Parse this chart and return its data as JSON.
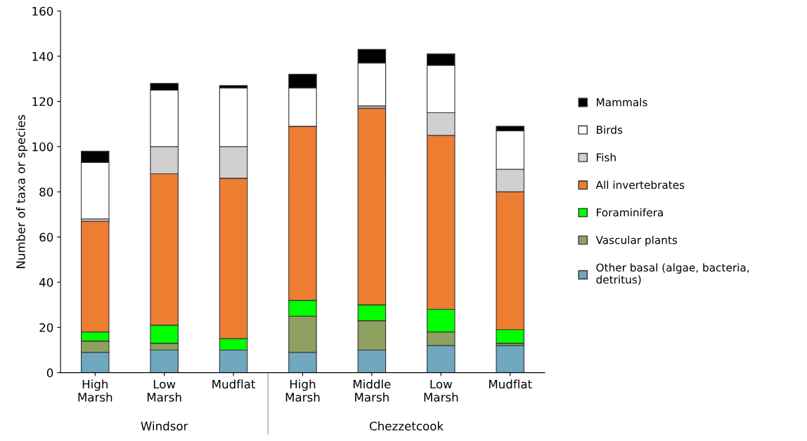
{
  "chart_data": {
    "type": "bar",
    "stacked": true,
    "ylabel": "Number of taxa or species",
    "categories": [
      "High\nMarsh",
      "Low\nMarsh",
      "Mudflat",
      "High\nMarsh",
      "Middle\nMarsh",
      "Low\nMarsh",
      "Mudflat"
    ],
    "series": [
      {
        "name": "Other basal (algae, bacteria, detritus)",
        "color": "#6fa8bf",
        "values": [
          9,
          10,
          10,
          9,
          10,
          12,
          12
        ]
      },
      {
        "name": "Vascular plants",
        "color": "#8ea060",
        "values": [
          5,
          3,
          0,
          16,
          13,
          6,
          1
        ]
      },
      {
        "name": "Foraminifera",
        "color": "#00ff00",
        "values": [
          4,
          8,
          5,
          7,
          7,
          10,
          6
        ]
      },
      {
        "name": "All invertebrates",
        "color": "#ed7d31",
        "values": [
          49,
          67,
          71,
          77,
          87,
          77,
          61
        ]
      },
      {
        "name": "Fish",
        "color": "#d0d0d0",
        "values": [
          1,
          12,
          14,
          0,
          1,
          10,
          10
        ]
      },
      {
        "name": "Birds",
        "color": "#ffffff",
        "values": [
          25,
          25,
          26,
          17,
          19,
          21,
          17
        ]
      },
      {
        "name": "Mammals",
        "color": "#000000",
        "values": [
          5,
          3,
          1,
          6,
          6,
          5,
          2
        ]
      }
    ],
    "ylim": [
      0,
      160
    ],
    "yticks": [
      0,
      20,
      40,
      60,
      80,
      100,
      120,
      140,
      160
    ],
    "annotations": [
      "Windsor",
      "Chezzetcook"
    ],
    "grid": false,
    "legend": "right"
  }
}
